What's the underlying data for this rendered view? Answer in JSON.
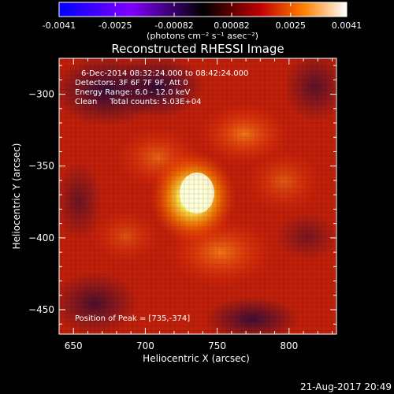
{
  "colorbar": {
    "ticks": [
      "-0.0041",
      "-0.0025",
      "-0.00082",
      "0.00082",
      "0.0025",
      "0.0041"
    ],
    "tick_values": [
      -0.0041,
      -0.0025,
      -0.00082,
      0.00082,
      0.0025,
      0.0041
    ],
    "range": [
      -0.0041,
      0.0041
    ],
    "unit": "(photons cm⁻² s⁻¹ asec⁻²)",
    "colors": [
      "#0000ff",
      "#8000ff",
      "#000000",
      "#c00000",
      "#ff8000",
      "#ffffff"
    ]
  },
  "chart_data": {
    "type": "heatmap",
    "title": "Reconstructed RHESSI Image",
    "xlabel": "Heliocentric X (arcsec)",
    "ylabel": "Heliocentric Y (arcsec)",
    "xlim": [
      640,
      833
    ],
    "ylim": [
      -467,
      -275
    ],
    "xticks": [
      650,
      700,
      750,
      800
    ],
    "yticks": [
      -300,
      -350,
      -400,
      -450
    ],
    "peak": [
      735,
      -374
    ],
    "annotations": [
      "6-Dec-2014 08:32:24.000 to 08:42:24.000",
      "Detectors: 3F 6F 7F 9F, Att 0",
      "Energy Range: 6.0 - 12.0 keV",
      "Clean     Total counts: 5.03E+04",
      "Position of Peak = [735,-374]"
    ]
  },
  "footer": {
    "timestamp": "21-Aug-2017 20:49"
  }
}
